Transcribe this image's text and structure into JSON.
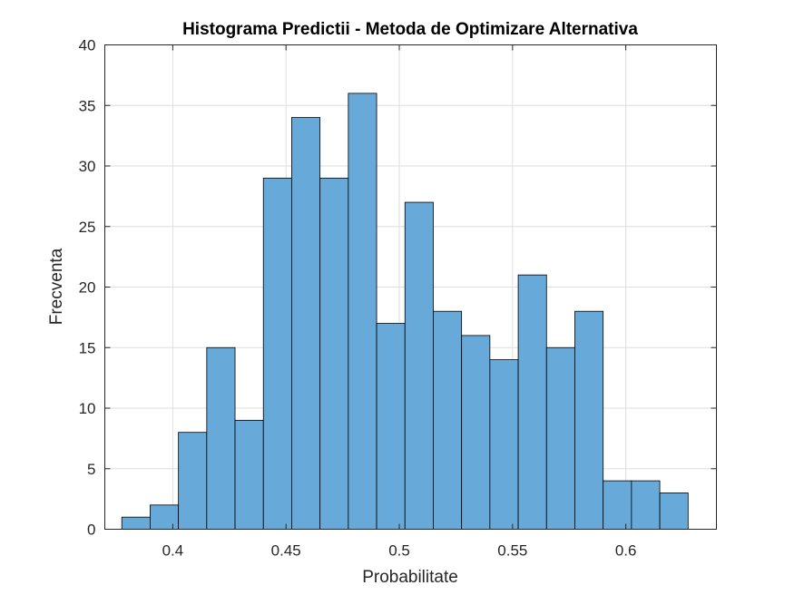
{
  "chart_data": {
    "type": "bar",
    "title": "Histograma Predictii - Metoda de Optimizare Alternativa",
    "xlabel": "Probabilitate",
    "ylabel": "Frecventa",
    "xlim": [
      0.37,
      0.64
    ],
    "ylim": [
      0,
      40
    ],
    "bin_edges": [
      0.3775,
      0.39,
      0.4025,
      0.415,
      0.4275,
      0.44,
      0.4525,
      0.465,
      0.4775,
      0.49,
      0.5025,
      0.515,
      0.5275,
      0.54,
      0.5525,
      0.565,
      0.5775,
      0.59,
      0.6025,
      0.615,
      0.6275
    ],
    "values": [
      1,
      2,
      8,
      15,
      9,
      29,
      34,
      29,
      36,
      17,
      27,
      18,
      16,
      14,
      21,
      15,
      18,
      4,
      4,
      3
    ],
    "x_ticks": [
      0.4,
      0.45,
      0.5,
      0.55,
      0.6
    ],
    "x_tick_labels": [
      "0.4",
      "0.45",
      "0.5",
      "0.55",
      "0.6"
    ],
    "y_ticks": [
      0,
      5,
      10,
      15,
      20,
      25,
      30,
      35,
      40
    ],
    "y_tick_labels": [
      "0",
      "5",
      "10",
      "15",
      "20",
      "25",
      "30",
      "35",
      "40"
    ],
    "grid": true,
    "bar_color": "#67a9d8"
  }
}
